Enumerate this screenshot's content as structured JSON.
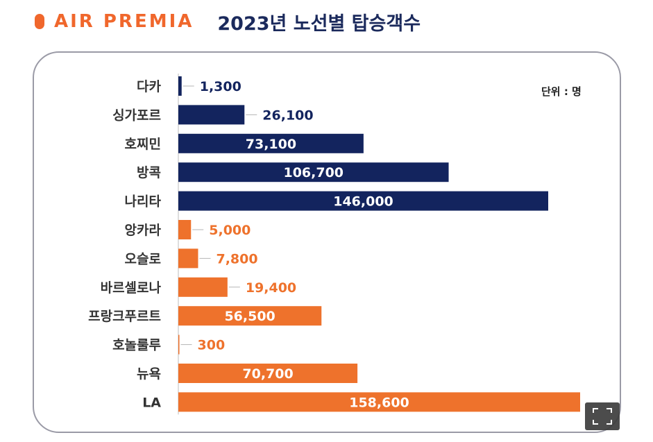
{
  "header": {
    "logo_text": "AIR PREMIA",
    "title": "2023년 노선별 탑승객수"
  },
  "unit_label": "단위 : 명",
  "colors": {
    "navy": "#13245e",
    "orange": "#ee722c",
    "accent": "#f0672c"
  },
  "chart_data": {
    "type": "bar",
    "orientation": "horizontal",
    "title": "2023년 노선별 탑승객수",
    "unit": "명",
    "categories": [
      "다카",
      "싱가포르",
      "호찌민",
      "방콕",
      "나리타",
      "앙카라",
      "오슬로",
      "바르셀로나",
      "프랑크푸르트",
      "호놀룰루",
      "뉴욕",
      "LA"
    ],
    "values": [
      1300,
      26100,
      73100,
      106700,
      146000,
      5000,
      7800,
      19400,
      56500,
      300,
      70700,
      158600
    ],
    "labels": [
      "1,300",
      "26,100",
      "73,100",
      "106,700",
      "146,000",
      "5,000",
      "7,800",
      "19,400",
      "56,500",
      "300",
      "70,700",
      "158,600"
    ],
    "groups": [
      "asia",
      "asia",
      "asia",
      "asia",
      "asia",
      "long-haul",
      "long-haul",
      "long-haul",
      "long-haul",
      "long-haul",
      "long-haul",
      "long-haul"
    ],
    "group_colors": {
      "asia": "#13245e",
      "long-haul": "#ee722c"
    },
    "xlim": [
      0,
      158600
    ]
  }
}
